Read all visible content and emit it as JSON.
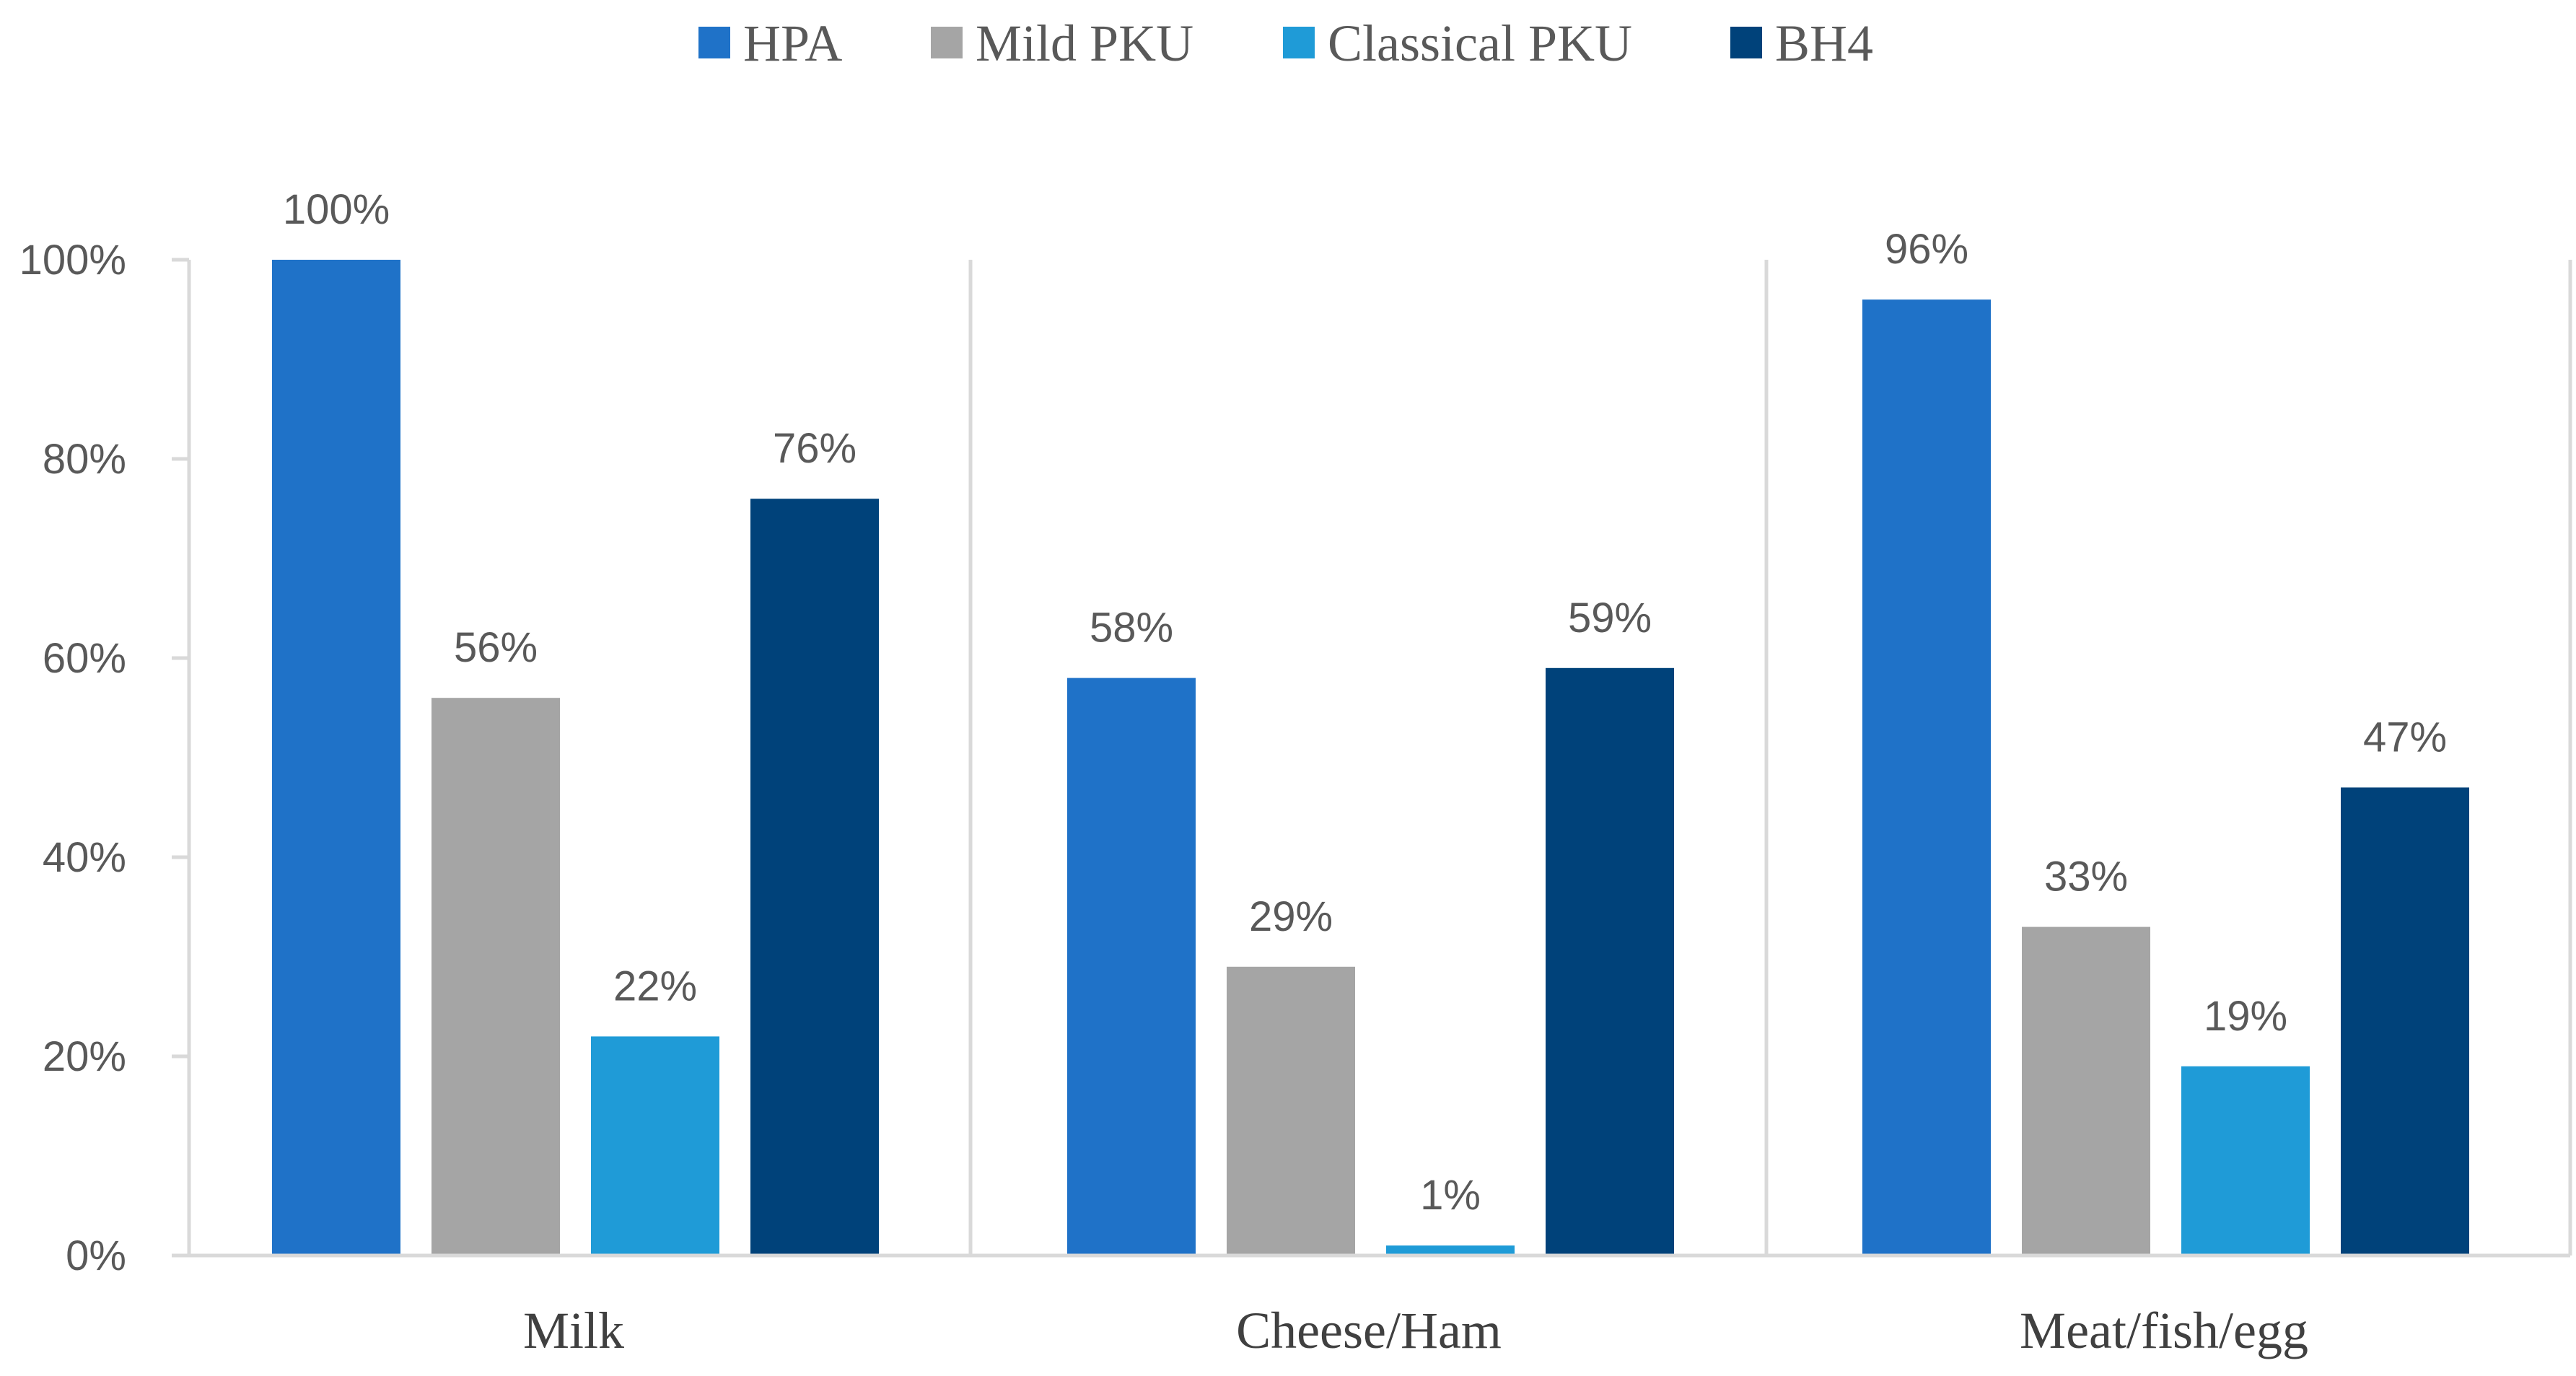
{
  "chart_data": {
    "type": "bar",
    "categories": [
      "Milk",
      "Cheese/Ham",
      "Meat/fish/egg"
    ],
    "series": [
      {
        "name": "HPA",
        "color": "#1f72c8",
        "values": [
          100,
          58,
          96
        ],
        "labels": [
          "100%",
          "58%",
          "96%"
        ]
      },
      {
        "name": "Mild PKU",
        "color": "#a5a5a5",
        "values": [
          56,
          29,
          33
        ],
        "labels": [
          "56%",
          "29%",
          "33%"
        ]
      },
      {
        "name": "Classical PKU",
        "color": "#1f9bd7",
        "values": [
          22,
          1,
          19
        ],
        "labels": [
          "22%",
          "1%",
          "19%"
        ]
      },
      {
        "name": "BH4",
        "color": "#00427a",
        "values": [
          76,
          59,
          47
        ],
        "labels": [
          "76%",
          "59%",
          "47%"
        ]
      }
    ],
    "y_ticks": [
      {
        "value": 0,
        "label": "0%"
      },
      {
        "value": 20,
        "label": "20%"
      },
      {
        "value": 40,
        "label": "40%"
      },
      {
        "value": 60,
        "label": "60%"
      },
      {
        "value": 80,
        "label": "80%"
      },
      {
        "value": 100,
        "label": "100%"
      }
    ],
    "ylim": [
      0,
      100
    ],
    "title": "",
    "xlabel": "",
    "ylabel": "",
    "legend_position": "top-center",
    "grid": false,
    "axis_color": "#d9d9d9"
  }
}
